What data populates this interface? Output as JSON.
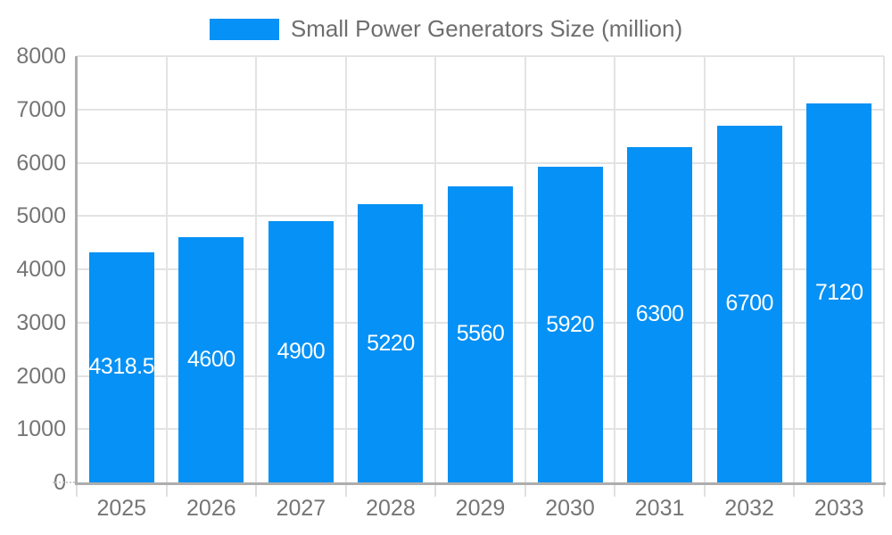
{
  "legend": {
    "label": "Small Power Generators Size (million)",
    "swatch_color": "#0591F5"
  },
  "chart_data": {
    "type": "bar",
    "title": "Small Power Generators Size (million)",
    "categories": [
      "2025",
      "2026",
      "2027",
      "2028",
      "2029",
      "2030",
      "2031",
      "2032",
      "2033"
    ],
    "values": [
      4318.5,
      4600,
      4900,
      5220,
      5560,
      5920,
      6300,
      6700,
      7120
    ],
    "bar_value_labels": [
      "4318.5",
      "4600",
      "4900",
      "5220",
      "5560",
      "5920",
      "6300",
      "6700",
      "7120"
    ],
    "xlabel": "",
    "ylabel": "",
    "ylim": [
      0,
      8000
    ],
    "yticks": [
      0,
      1000,
      2000,
      3000,
      4000,
      5000,
      6000,
      7000,
      8000
    ],
    "ytick_labels": [
      "0",
      "1000",
      "2000",
      "3000",
      "4000",
      "5000",
      "6000",
      "7000",
      "8000"
    ],
    "grid": true,
    "legend_position": "top",
    "colors": {
      "bar": "#0591F5",
      "value_label": "#ffffff",
      "axis_text": "#757575",
      "legend_text": "#6e6e6e",
      "grid_line": "#e3e3e3",
      "tick_line": "#e0e0e0",
      "axis_line": "#adadad",
      "background": "#ffffff"
    }
  }
}
